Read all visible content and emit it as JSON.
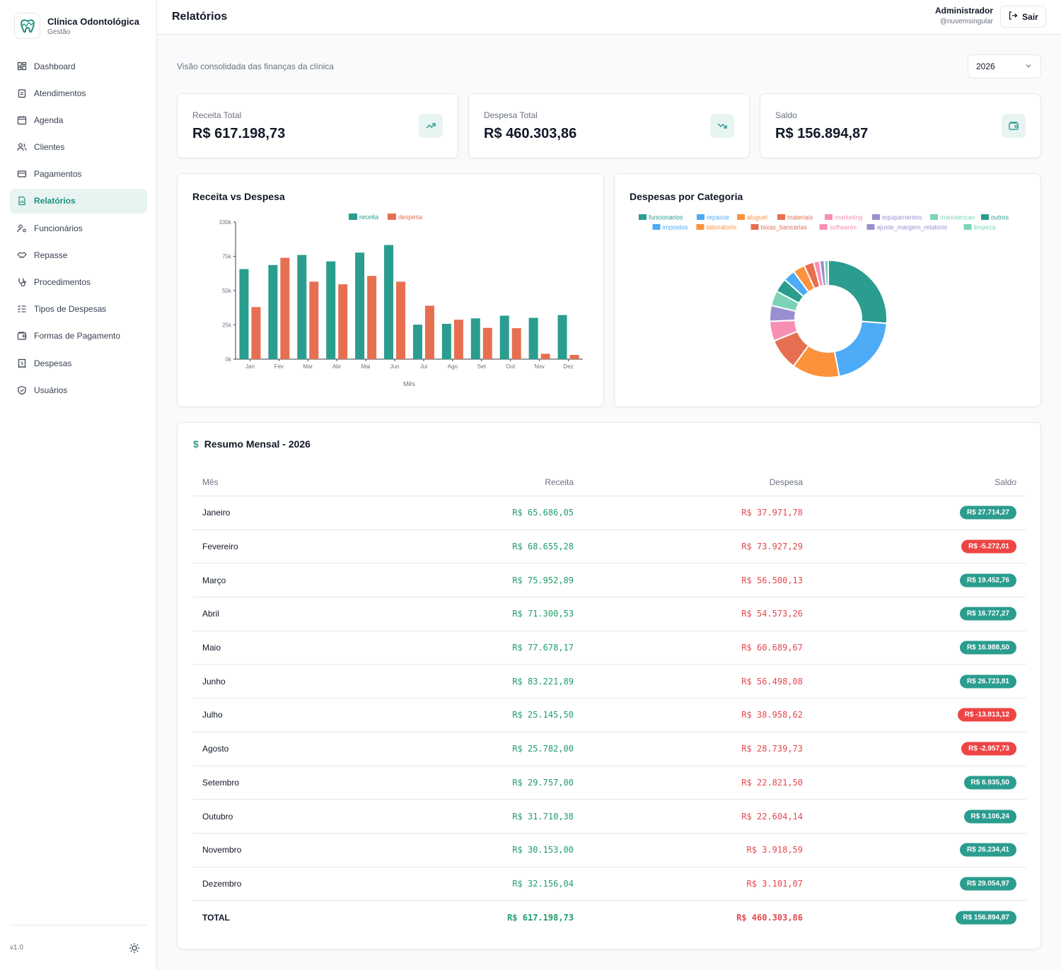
{
  "brand": {
    "title": "Clínica Odontológica",
    "subtitle": "Gestão"
  },
  "nav": [
    {
      "label": "Dashboard",
      "icon": "dashboard-icon",
      "active": false
    },
    {
      "label": "Atendimentos",
      "icon": "clipboard-icon",
      "active": false
    },
    {
      "label": "Agenda",
      "icon": "calendar-icon",
      "active": false
    },
    {
      "label": "Clientes",
      "icon": "users-icon",
      "active": false
    },
    {
      "label": "Pagamentos",
      "icon": "credit-card-icon",
      "active": false
    },
    {
      "label": "Relatórios",
      "icon": "report-icon",
      "active": true
    },
    {
      "label": "Funcionários",
      "icon": "user-cog-icon",
      "active": false
    },
    {
      "label": "Repasse",
      "icon": "handshake-icon",
      "active": false
    },
    {
      "label": "Procedimentos",
      "icon": "stethoscope-icon",
      "active": false
    },
    {
      "label": "Tipos de Despesas",
      "icon": "list-check-icon",
      "active": false
    },
    {
      "label": "Formas de Pagamento",
      "icon": "wallet-icon",
      "active": false
    },
    {
      "label": "Despesas",
      "icon": "receipt-icon",
      "active": false
    },
    {
      "label": "Usuários",
      "icon": "shield-icon",
      "active": false
    }
  ],
  "footer": {
    "version": "v1.0"
  },
  "header": {
    "title": "Relatórios",
    "user_name": "Administrador",
    "user_handle": "@nuvemsingular",
    "logout_label": "Sair"
  },
  "main": {
    "subtitle": "Visão consolidada das finanças da clínica",
    "year": "2026"
  },
  "stats": [
    {
      "label": "Receita Total",
      "value": "R$ 617.198,73",
      "icon": "trending-up-icon"
    },
    {
      "label": "Despesa Total",
      "value": "R$ 460.303,86",
      "icon": "trending-down-icon"
    },
    {
      "label": "Saldo",
      "value": "R$ 156.894,87",
      "icon": "wallet-icon"
    }
  ],
  "colors": {
    "accent": "#2a9d8f",
    "receita": "#2a9d8f",
    "despesa": "#e76f51",
    "positive_badge": "#2a9d8f",
    "negative_badge": "#ef4444"
  },
  "chart_data": [
    {
      "type": "bar",
      "title": "Receita vs Despesa",
      "xlabel": "Mês",
      "ylabel": "",
      "categories": [
        "Jan",
        "Fev",
        "Mar",
        "Abr",
        "Mai",
        "Jun",
        "Jul",
        "Ago",
        "Set",
        "Out",
        "Nov",
        "Dez"
      ],
      "yticks": [
        "0k",
        "25k",
        "50k",
        "75k",
        "100k"
      ],
      "ylim": [
        0,
        100000
      ],
      "legend_position": "top",
      "series": [
        {
          "name": "receita",
          "color": "#2a9d8f",
          "values": [
            65686.05,
            68655.28,
            75952.89,
            71300.53,
            77678.17,
            83221.89,
            25145.5,
            25782.0,
            29757.0,
            31710.38,
            30153.0,
            32156.04
          ]
        },
        {
          "name": "despesa",
          "color": "#e76f51",
          "values": [
            37971.78,
            73927.29,
            56500.13,
            54573.26,
            60689.67,
            56498.08,
            38958.62,
            28739.73,
            22821.5,
            22604.14,
            3918.59,
            3101.07
          ]
        }
      ]
    },
    {
      "type": "pie",
      "title": "Despesas por Categoria",
      "legend_position": "top",
      "labels": [
        "funcionarios",
        "repasse",
        "aluguel",
        "materiais",
        "marketing",
        "equipamentos",
        "manutencao",
        "outros",
        "impostos",
        "laboratorio",
        "taxas_bancarias",
        "softwares",
        "ajuste_margem_relatorio",
        "limpeza"
      ],
      "colors": [
        "#2a9d8f",
        "#4dabf7",
        "#fb923c",
        "#e76f51",
        "#f78fb3",
        "#9b8fd1",
        "#7dd3b8",
        "#2a9d8f",
        "#4dabf7",
        "#fb923c",
        "#e76f51",
        "#f78fb3",
        "#9b8fd1",
        "#7dd3b8"
      ],
      "values": [
        24.0,
        19.0,
        12.0,
        8.0,
        5.0,
        4.0,
        3.8,
        3.5,
        3.0,
        3.0,
        2.5,
        1.5,
        1.2,
        1.0
      ]
    }
  ],
  "table": {
    "title": "Resumo Mensal - 2026",
    "headers": {
      "mes": "Mês",
      "receita": "Receita",
      "despesa": "Despesa",
      "saldo": "Saldo"
    },
    "rows": [
      {
        "mes": "Janeiro",
        "receita": "R$ 65.686,05",
        "despesa": "R$ 37.971,78",
        "saldo": "R$ 27.714,27",
        "negative": false
      },
      {
        "mes": "Fevereiro",
        "receita": "R$ 68.655,28",
        "despesa": "R$ 73.927,29",
        "saldo": "R$ -5.272,01",
        "negative": true
      },
      {
        "mes": "Março",
        "receita": "R$ 75.952,89",
        "despesa": "R$ 56.500,13",
        "saldo": "R$ 19.452,76",
        "negative": false
      },
      {
        "mes": "Abril",
        "receita": "R$ 71.300,53",
        "despesa": "R$ 54.573,26",
        "saldo": "R$ 16.727,27",
        "negative": false
      },
      {
        "mes": "Maio",
        "receita": "R$ 77.678,17",
        "despesa": "R$ 60.689,67",
        "saldo": "R$ 16.988,50",
        "negative": false
      },
      {
        "mes": "Junho",
        "receita": "R$ 83.221,89",
        "despesa": "R$ 56.498,08",
        "saldo": "R$ 26.723,81",
        "negative": false
      },
      {
        "mes": "Julho",
        "receita": "R$ 25.145,50",
        "despesa": "R$ 38.958,62",
        "saldo": "R$ -13.813,12",
        "negative": true
      },
      {
        "mes": "Agosto",
        "receita": "R$ 25.782,00",
        "despesa": "R$ 28.739,73",
        "saldo": "R$ -2.957,73",
        "negative": true
      },
      {
        "mes": "Setembro",
        "receita": "R$ 29.757,00",
        "despesa": "R$ 22.821,50",
        "saldo": "R$ 6.935,50",
        "negative": false
      },
      {
        "mes": "Outubro",
        "receita": "R$ 31.710,38",
        "despesa": "R$ 22.604,14",
        "saldo": "R$ 9.106,24",
        "negative": false
      },
      {
        "mes": "Novembro",
        "receita": "R$ 30.153,00",
        "despesa": "R$ 3.918,59",
        "saldo": "R$ 26.234,41",
        "negative": false
      },
      {
        "mes": "Dezembro",
        "receita": "R$ 32.156,04",
        "despesa": "R$ 3.101,07",
        "saldo": "R$ 29.054,97",
        "negative": false
      }
    ],
    "total": {
      "mes": "TOTAL",
      "receita": "R$ 617.198,73",
      "despesa": "R$ 460.303,86",
      "saldo": "R$ 156.894,87",
      "negative": false
    }
  }
}
